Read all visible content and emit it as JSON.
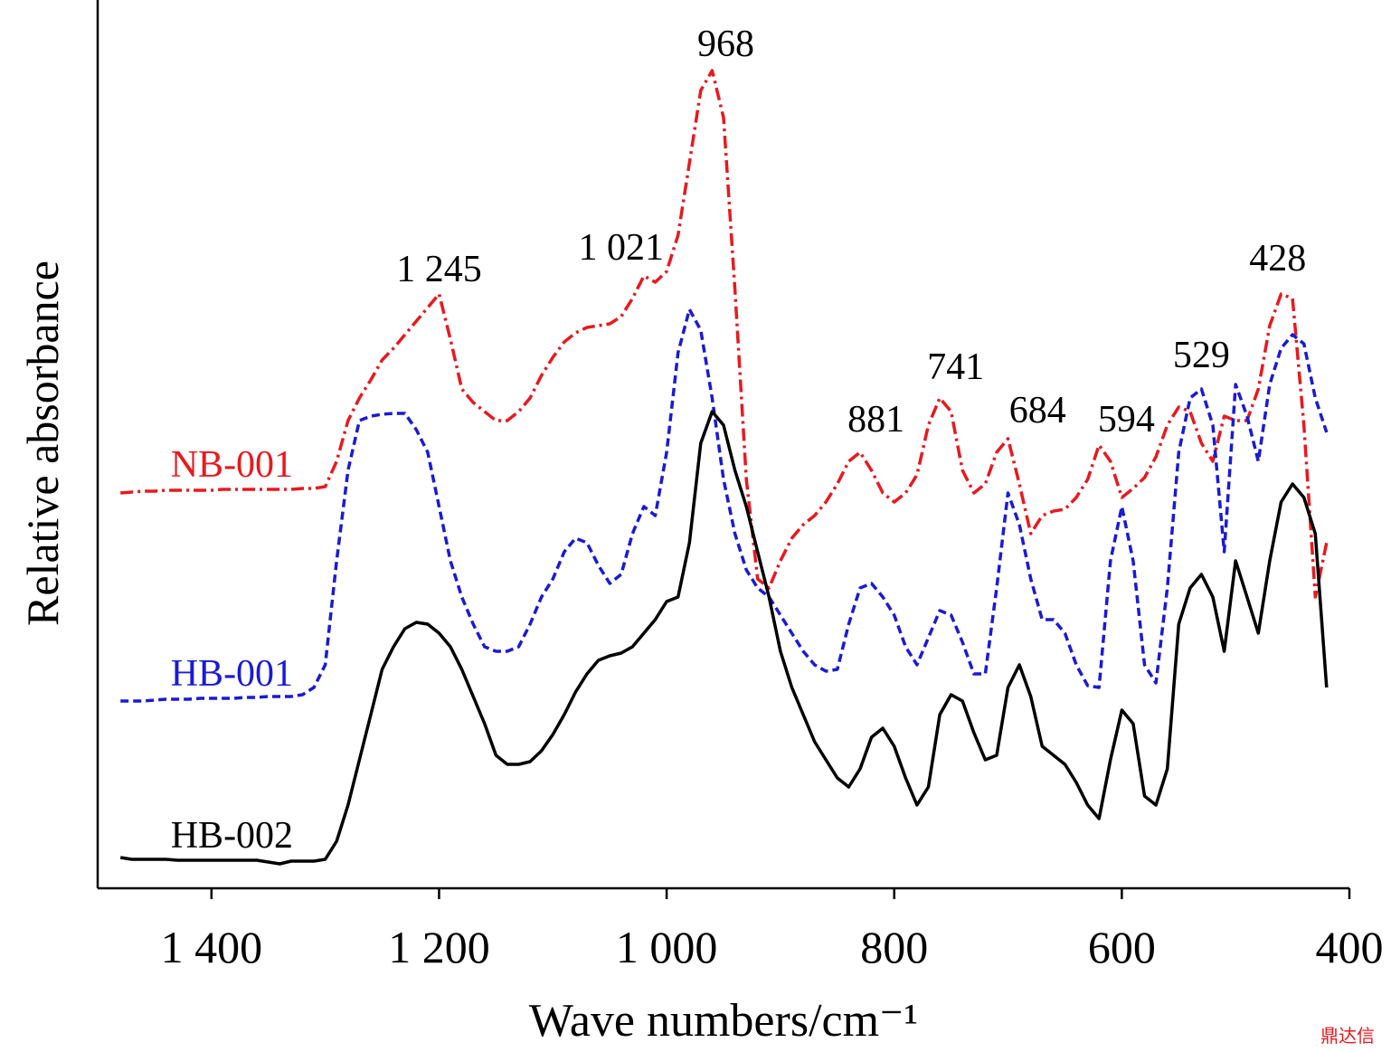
{
  "chart_data": {
    "type": "line",
    "xlabel": "Wave numbers/cm⁻¹",
    "ylabel": "Relative absorbance",
    "xlim": [
      1500,
      400
    ],
    "ylim": [
      0,
      98
    ],
    "xticks": [
      {
        "value": 1400,
        "label": "1 400"
      },
      {
        "value": 1200,
        "label": "1 200"
      },
      {
        "value": 1000,
        "label": "1 000"
      },
      800,
      600,
      400
    ],
    "x": [
      1480,
      1470,
      1460,
      1450,
      1440,
      1430,
      1420,
      1410,
      1400,
      1390,
      1380,
      1370,
      1360,
      1350,
      1340,
      1330,
      1320,
      1310,
      1300,
      1290,
      1280,
      1270,
      1260,
      1250,
      1240,
      1230,
      1220,
      1210,
      1200,
      1190,
      1180,
      1170,
      1160,
      1150,
      1140,
      1130,
      1120,
      1110,
      1100,
      1090,
      1080,
      1070,
      1060,
      1050,
      1040,
      1030,
      1020,
      1010,
      1000,
      990,
      980,
      970,
      960,
      950,
      940,
      930,
      920,
      910,
      900,
      890,
      880,
      870,
      860,
      850,
      840,
      830,
      820,
      810,
      800,
      790,
      780,
      770,
      760,
      750,
      740,
      730,
      720,
      710,
      700,
      690,
      680,
      670,
      660,
      650,
      640,
      630,
      620,
      610,
      600,
      590,
      580,
      570,
      560,
      550,
      540,
      530,
      520,
      510,
      500,
      490,
      480,
      470,
      460,
      450,
      440,
      430,
      420
    ],
    "series": [
      {
        "name": "NB-001",
        "color": "#e8191f",
        "linestyle": "dashdot",
        "values": [
          43.7,
          43.8,
          43.9,
          43.9,
          44.0,
          44.0,
          44.0,
          44.0,
          44.0,
          44.1,
          44.1,
          44.1,
          44.1,
          44.1,
          44.1,
          44.1,
          44.2,
          44.2,
          44.4,
          47.2,
          51.7,
          54.2,
          56.2,
          58.4,
          59.7,
          61.2,
          62.7,
          64.2,
          65.7,
          60.7,
          55.2,
          53.7,
          52.7,
          51.7,
          51.7,
          52.7,
          54.2,
          56.7,
          58.7,
          60.4,
          61.4,
          62.0,
          62.2,
          62.4,
          63.2,
          65.2,
          67.7,
          67.0,
          68.2,
          72.2,
          80.2,
          88.2,
          90.4,
          85.2,
          66.2,
          45.2,
          34.2,
          33.2,
          36.2,
          38.7,
          40.2,
          41.2,
          42.7,
          44.7,
          47.2,
          48.2,
          46.2,
          43.7,
          42.7,
          43.7,
          45.7,
          51.2,
          54.2,
          52.7,
          46.2,
          43.7,
          44.7,
          48.2,
          49.7,
          44.7,
          39.2,
          41.2,
          41.7,
          41.9,
          43.2,
          45.2,
          49.0,
          47.2,
          43.2,
          44.2,
          45.4,
          47.7,
          51.2,
          53.2,
          52.7,
          49.2,
          47.2,
          52.2,
          51.7,
          51.7,
          55.2,
          62.2,
          65.7,
          65.2,
          51.2,
          32.2,
          38.2
        ]
      },
      {
        "name": "HB-001",
        "color": "#1a1ad6",
        "linestyle": "dashed",
        "values": [
          20.7,
          20.7,
          20.7,
          20.8,
          20.9,
          20.9,
          20.9,
          21.0,
          21.0,
          21.0,
          21.0,
          21.1,
          21.1,
          21.2,
          21.2,
          21.2,
          21.4,
          22.2,
          24.7,
          36.2,
          46.2,
          51.7,
          52.2,
          52.4,
          52.5,
          52.5,
          50.7,
          48.2,
          42.2,
          36.2,
          32.2,
          29.2,
          26.7,
          26.2,
          26.2,
          26.7,
          29.2,
          32.2,
          34.2,
          37.2,
          38.7,
          38.2,
          35.7,
          33.7,
          34.7,
          39.2,
          42.2,
          41.2,
          48.2,
          59.2,
          64.0,
          61.7,
          54.2,
          45.2,
          39.2,
          35.2,
          33.2,
          32.2,
          30.2,
          28.2,
          26.2,
          24.7,
          24.0,
          24.2,
          29.2,
          33.2,
          33.7,
          32.2,
          30.2,
          26.7,
          24.7,
          27.7,
          30.7,
          30.2,
          27.2,
          23.7,
          23.7,
          33.2,
          43.7,
          40.2,
          34.2,
          29.7,
          29.7,
          28.2,
          24.7,
          22.4,
          22.2,
          36.2,
          42.2,
          36.2,
          24.7,
          22.7,
          33.2,
          48.2,
          54.2,
          55.2,
          51.2,
          37.2,
          55.7,
          52.2,
          47.2,
          55.7,
          59.7,
          61.2,
          60.2,
          54.2,
          50.4
        ]
      },
      {
        "name": "HB-002",
        "color": "#000000",
        "linestyle": "solid",
        "values": [
          3.4,
          3.2,
          3.2,
          3.2,
          3.2,
          3.1,
          3.1,
          3.1,
          3.1,
          3.1,
          3.1,
          3.1,
          3.1,
          2.9,
          2.7,
          3.0,
          3.0,
          3.0,
          3.2,
          5.2,
          9.2,
          14.2,
          19.2,
          24.2,
          26.7,
          28.7,
          29.4,
          29.2,
          28.2,
          26.7,
          24.2,
          21.2,
          18.2,
          14.7,
          13.7,
          13.7,
          14.0,
          15.2,
          17.0,
          19.2,
          21.7,
          23.7,
          25.2,
          25.7,
          26.0,
          26.7,
          28.2,
          29.7,
          31.7,
          32.2,
          38.2,
          49.2,
          52.7,
          51.2,
          46.2,
          42.2,
          37.2,
          32.2,
          26.2,
          22.2,
          19.2,
          16.2,
          14.2,
          12.2,
          11.2,
          13.2,
          16.7,
          17.7,
          15.7,
          12.2,
          9.2,
          11.2,
          19.2,
          21.4,
          20.7,
          17.2,
          14.2,
          14.7,
          22.2,
          24.7,
          21.2,
          15.7,
          14.7,
          13.7,
          11.7,
          9.2,
          7.7,
          14.2,
          19.7,
          18.2,
          10.2,
          9.2,
          13.2,
          29.2,
          33.2,
          34.7,
          32.2,
          26.2,
          36.2,
          32.2,
          28.2,
          36.2,
          42.7,
          44.7,
          43.2,
          39.2,
          22.2
        ]
      }
    ],
    "annotations": [
      {
        "text": "968",
        "x": 948,
        "y": 93.4
      },
      {
        "text": "1 245",
        "x": 1200,
        "y": 68.5
      },
      {
        "text": "1 021",
        "x": 1040,
        "y": 70.9
      },
      {
        "text": "881",
        "x": 816,
        "y": 51.9
      },
      {
        "text": "741",
        "x": 746,
        "y": 57.7
      },
      {
        "text": "684",
        "x": 674,
        "y": 52.9
      },
      {
        "text": "594",
        "x": 596,
        "y": 51.9
      },
      {
        "text": "529",
        "x": 530,
        "y": 59.0
      },
      {
        "text": "428",
        "x": 463,
        "y": 69.7
      }
    ],
    "watermark": "鼎达信"
  }
}
